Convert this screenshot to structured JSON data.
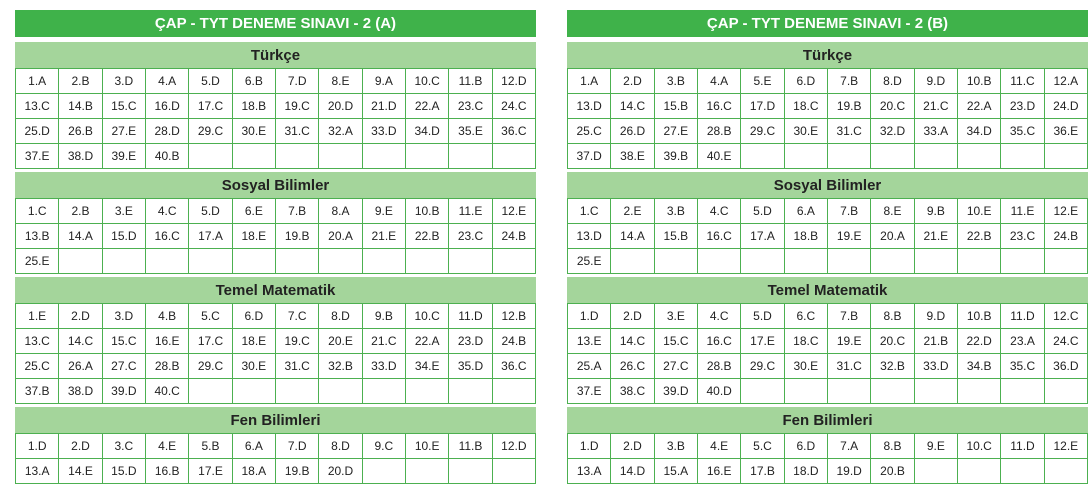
{
  "panels": [
    {
      "title": "ÇAP - TYT DENEME SINAVI - 2 (A)",
      "sections": [
        {
          "name": "Türkçe",
          "answers": [
            "1.A",
            "2.B",
            "3.D",
            "4.A",
            "5.D",
            "6.B",
            "7.D",
            "8.E",
            "9.A",
            "10.C",
            "11.B",
            "12.D",
            "13.C",
            "14.B",
            "15.C",
            "16.D",
            "17.C",
            "18.B",
            "19.C",
            "20.D",
            "21.D",
            "22.A",
            "23.C",
            "24.C",
            "25.D",
            "26.B",
            "27.E",
            "28.D",
            "29.C",
            "30.E",
            "31.C",
            "32.A",
            "33.D",
            "34.D",
            "35.E",
            "36.C",
            "37.E",
            "38.D",
            "39.E",
            "40.B"
          ]
        },
        {
          "name": "Sosyal Bilimler",
          "answers": [
            "1.C",
            "2.B",
            "3.E",
            "4.C",
            "5.D",
            "6.E",
            "7.B",
            "8.A",
            "9.E",
            "10.B",
            "11.E",
            "12.E",
            "13.B",
            "14.A",
            "15.D",
            "16.C",
            "17.A",
            "18.E",
            "19.B",
            "20.A",
            "21.E",
            "22.B",
            "23.C",
            "24.B",
            "25.E"
          ]
        },
        {
          "name": "Temel Matematik",
          "answers": [
            "1.E",
            "2.D",
            "3.D",
            "4.B",
            "5.C",
            "6.D",
            "7.C",
            "8.D",
            "9.B",
            "10.C",
            "11.D",
            "12.B",
            "13.C",
            "14.C",
            "15.C",
            "16.E",
            "17.C",
            "18.E",
            "19.C",
            "20.E",
            "21.C",
            "22.A",
            "23.D",
            "24.B",
            "25.C",
            "26.A",
            "27.C",
            "28.B",
            "29.C",
            "30.E",
            "31.C",
            "32.B",
            "33.D",
            "34.E",
            "35.D",
            "36.C",
            "37.B",
            "38.D",
            "39.D",
            "40.C"
          ]
        },
        {
          "name": "Fen Bilimleri",
          "answers": [
            "1.D",
            "2.D",
            "3.C",
            "4.E",
            "5.B",
            "6.A",
            "7.D",
            "8.D",
            "9.C",
            "10.E",
            "11.B",
            "12.D",
            "13.A",
            "14.E",
            "15.D",
            "16.B",
            "17.E",
            "18.A",
            "19.B",
            "20.D"
          ]
        }
      ]
    },
    {
      "title": "ÇAP - TYT DENEME SINAVI - 2 (B)",
      "sections": [
        {
          "name": "Türkçe",
          "answers": [
            "1.A",
            "2.D",
            "3.B",
            "4.A",
            "5.E",
            "6.D",
            "7.B",
            "8.D",
            "9.D",
            "10.B",
            "11.C",
            "12.A",
            "13.D",
            "14.C",
            "15.B",
            "16.C",
            "17.D",
            "18.C",
            "19.B",
            "20.C",
            "21.C",
            "22.A",
            "23.D",
            "24.D",
            "25.C",
            "26.D",
            "27.E",
            "28.B",
            "29.C",
            "30.E",
            "31.C",
            "32.D",
            "33.A",
            "34.D",
            "35.C",
            "36.E",
            "37.D",
            "38.E",
            "39.B",
            "40.E"
          ]
        },
        {
          "name": "Sosyal Bilimler",
          "answers": [
            "1.C",
            "2.E",
            "3.B",
            "4.C",
            "5.D",
            "6.A",
            "7.B",
            "8.E",
            "9.B",
            "10.E",
            "11.E",
            "12.E",
            "13.D",
            "14.A",
            "15.B",
            "16.C",
            "17.A",
            "18.B",
            "19.E",
            "20.A",
            "21.E",
            "22.B",
            "23.C",
            "24.B",
            "25.E"
          ]
        },
        {
          "name": "Temel Matematik",
          "answers": [
            "1.D",
            "2.D",
            "3.E",
            "4.C",
            "5.D",
            "6.C",
            "7.B",
            "8.B",
            "9.D",
            "10.B",
            "11.D",
            "12.C",
            "13.E",
            "14.C",
            "15.C",
            "16.C",
            "17.E",
            "18.C",
            "19.E",
            "20.C",
            "21.B",
            "22.D",
            "23.A",
            "24.C",
            "25.A",
            "26.C",
            "27.C",
            "28.B",
            "29.C",
            "30.E",
            "31.C",
            "32.B",
            "33.D",
            "34.B",
            "35.C",
            "36.D",
            "37.E",
            "38.C",
            "39.D",
            "40.D"
          ]
        },
        {
          "name": "Fen Bilimleri",
          "answers": [
            "1.D",
            "2.D",
            "3.B",
            "4.E",
            "5.C",
            "6.D",
            "7.A",
            "8.B",
            "9.E",
            "10.C",
            "11.D",
            "12.E",
            "13.A",
            "14.D",
            "15.A",
            "16.E",
            "17.B",
            "18.D",
            "19.D",
            "20.B"
          ]
        }
      ]
    }
  ]
}
